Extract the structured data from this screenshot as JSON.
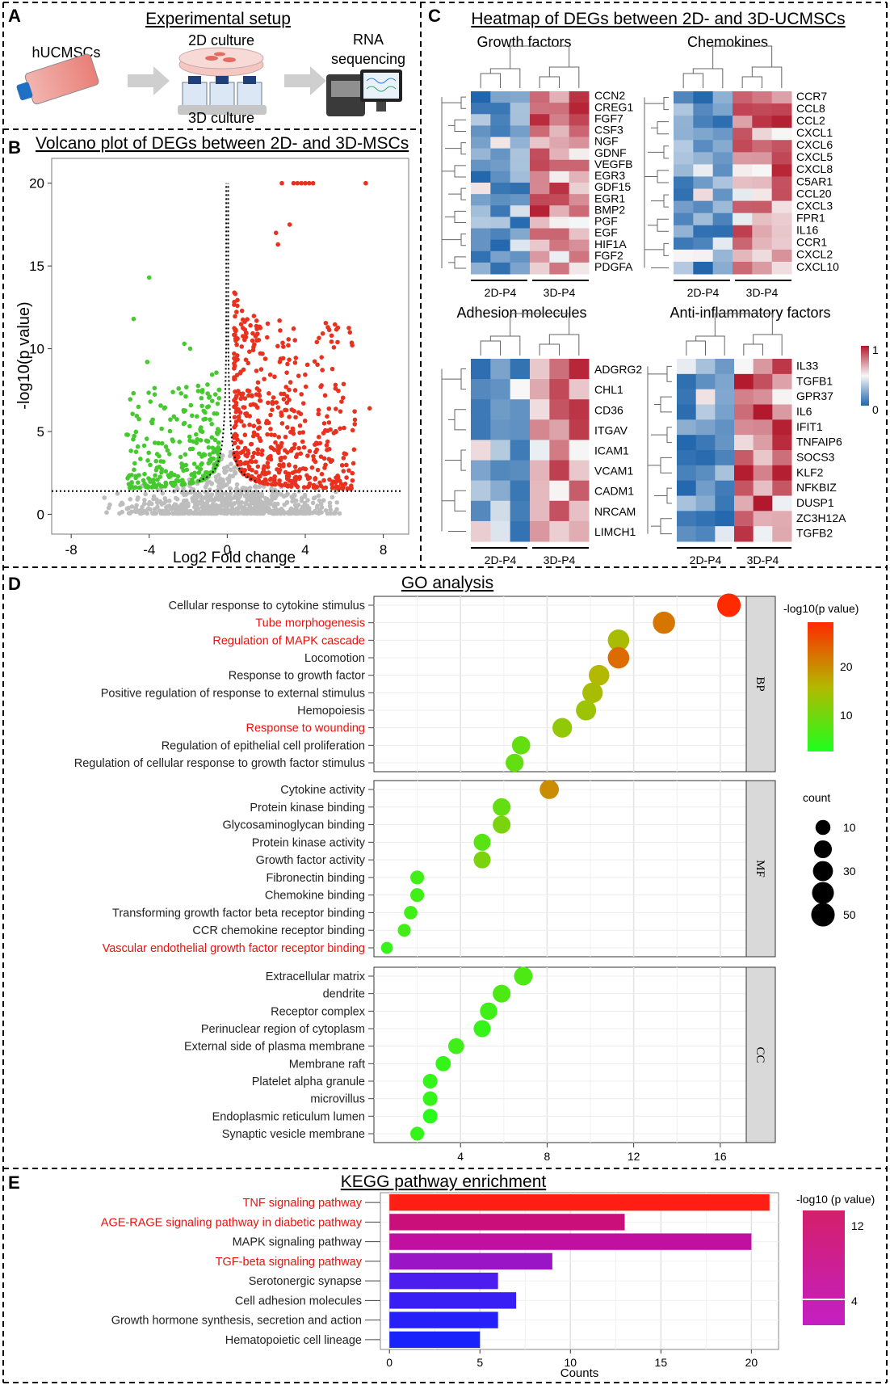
{
  "panel_letters": {
    "A": "A",
    "B": "B",
    "C": "C",
    "D": "D",
    "E": "E"
  },
  "panelA": {
    "title": "Experimental setup",
    "label_cells": "hUCMSCs",
    "label_2d": "2D culture",
    "label_3d": "3D culture",
    "label_rna": [
      "RNA",
      "sequencing"
    ]
  },
  "panelB": {
    "title": "Volcano plot of DEGs between 2D- and 3D-MSCs",
    "ylabel": "-log10(p value)",
    "xlabel": "Log2 Fold change",
    "x_ticks": [
      -8,
      -4,
      0,
      4,
      8
    ],
    "y_ticks": [
      0,
      5,
      10,
      15,
      20
    ],
    "colors": {
      "up": "#e8321f",
      "down": "#45c92f",
      "ns": "#bdbdbd"
    }
  },
  "panelC": {
    "title": "Heatmap of DEGs between 2D- and 3D-UCMSCs",
    "group_labels": [
      "2D-P4",
      "3D-P4"
    ],
    "legend_ticks": [
      "1",
      "0"
    ],
    "heatmaps": [
      {
        "title": "Growth factors",
        "genes": [
          "CCN2",
          "CREG1",
          "FGF7",
          "CSF3",
          "NGF",
          "GDNF",
          "VEGFB",
          "EGR3",
          "GDF15",
          "EGR1",
          "BMP2",
          "PGF",
          "EGF",
          "HIF1A",
          "FGF2",
          "PDGFA"
        ]
      },
      {
        "title": "Chemokines",
        "genes": [
          "CCR7",
          "CCL8",
          "CCL2",
          "CXCL1",
          "CXCL6",
          "CXCL5",
          "CXCL8",
          "C5AR1",
          "CCL20",
          "CXCL3",
          "FPR1",
          "IL16",
          "CCR1",
          "CXCL2",
          "CXCL10"
        ]
      },
      {
        "title": "Adhesion molecules",
        "genes": [
          "ADGRG2",
          "CHL1",
          "CD36",
          "ITGAV",
          "ICAM1",
          "VCAM1",
          "CADM1",
          "NRCAM",
          "LIMCH1"
        ]
      },
      {
        "title": "Anti-inflammatory factors",
        "genes": [
          "IL33",
          "TGFB1",
          "GPR37",
          "IL6",
          "IFIT1",
          "TNFAIP6",
          "SOCS3",
          "KLF2",
          "NFKBIZ",
          "DUSP1",
          "ZC3H12A",
          "TGFB2"
        ]
      }
    ]
  },
  "chart_data": [
    {
      "type": "scatter",
      "title": "GO analysis",
      "x_ticks": [
        4,
        8,
        12,
        16
      ],
      "xlim": [
        0,
        17.2
      ],
      "color_legend_title": "-log10(p value)",
      "color_legend_ticks": [
        20,
        10
      ],
      "size_legend_title": "count",
      "size_legend_values": [
        10,
        20,
        30,
        40,
        50
      ],
      "highlight_color": "#e8130c",
      "facets": [
        {
          "name": "BP",
          "terms": [
            {
              "label": "Cellular response to cytokine stimulus",
              "x": 16.4,
              "logp": 29,
              "count": 50,
              "highlight": false
            },
            {
              "label": "Tube morphogenesis",
              "x": 13.4,
              "logp": 22,
              "count": 42,
              "highlight": true
            },
            {
              "label": "Regulation of MAPK cascade",
              "x": 11.3,
              "logp": 15,
              "count": 38,
              "highlight": true
            },
            {
              "label": "Locomotion",
              "x": 11.3,
              "logp": 23,
              "count": 38,
              "highlight": false
            },
            {
              "label": "Response to growth factor",
              "x": 10.4,
              "logp": 16,
              "count": 33,
              "highlight": false
            },
            {
              "label": "Positive regulation of response to external stimulus",
              "x": 10.1,
              "logp": 15,
              "count": 32,
              "highlight": false
            },
            {
              "label": "Hemopoiesis",
              "x": 9.8,
              "logp": 14,
              "count": 31,
              "highlight": false
            },
            {
              "label": "Response to wounding",
              "x": 8.7,
              "logp": 13,
              "count": 28,
              "highlight": true
            },
            {
              "label": "Regulation of epithelial cell proliferation",
              "x": 6.8,
              "logp": 9,
              "count": 22,
              "highlight": false
            },
            {
              "label": "Regulation of cellular response to growth factor stimulus",
              "x": 6.5,
              "logp": 9,
              "count": 21,
              "highlight": false
            }
          ]
        },
        {
          "name": "MF",
          "terms": [
            {
              "label": "Cytokine activity",
              "x": 8.1,
              "logp": 20,
              "count": 26,
              "highlight": false
            },
            {
              "label": "Protein kinase binding",
              "x": 5.9,
              "logp": 9,
              "count": 20,
              "highlight": false
            },
            {
              "label": "Glycosaminoglycan binding",
              "x": 5.9,
              "logp": 11,
              "count": 20,
              "highlight": false
            },
            {
              "label": "Protein kinase activity",
              "x": 5.0,
              "logp": 8,
              "count": 17,
              "highlight": false
            },
            {
              "label": "Growth factor activity",
              "x": 5.0,
              "logp": 11,
              "count": 17,
              "highlight": false
            },
            {
              "label": "Fibronectin binding",
              "x": 2.0,
              "logp": 6,
              "count": 7,
              "highlight": false
            },
            {
              "label": "Chemokine binding",
              "x": 2.0,
              "logp": 6,
              "count": 7,
              "highlight": false
            },
            {
              "label": "Transforming growth factor beta receptor binding",
              "x": 1.7,
              "logp": 6,
              "count": 6,
              "highlight": false
            },
            {
              "label": "CCR chemokine receptor binding",
              "x": 1.4,
              "logp": 6,
              "count": 5,
              "highlight": false
            },
            {
              "label": "Vascular endothelial growth factor receptor binding",
              "x": 0.6,
              "logp": 5,
              "count": 3,
              "highlight": true
            }
          ]
        },
        {
          "name": "CC",
          "terms": [
            {
              "label": "Extracellular matrix",
              "x": 6.9,
              "logp": 7,
              "count": 23,
              "highlight": false
            },
            {
              "label": "dendrite",
              "x": 5.9,
              "logp": 7,
              "count": 20,
              "highlight": false
            },
            {
              "label": "Receptor complex",
              "x": 5.3,
              "logp": 6,
              "count": 18,
              "highlight": false
            },
            {
              "label": "Perinuclear region of cytoplasm",
              "x": 5.0,
              "logp": 5,
              "count": 17,
              "highlight": false
            },
            {
              "label": "External side of plasma membrane",
              "x": 3.8,
              "logp": 6,
              "count": 13,
              "highlight": false
            },
            {
              "label": "Membrane raft",
              "x": 3.2,
              "logp": 5,
              "count": 11,
              "highlight": false
            },
            {
              "label": "Platelet alpha granule",
              "x": 2.6,
              "logp": 5,
              "count": 9,
              "highlight": false
            },
            {
              "label": "microvillus",
              "x": 2.6,
              "logp": 5,
              "count": 9,
              "highlight": false
            },
            {
              "label": "Endoplasmic reticulum lumen",
              "x": 2.6,
              "logp": 4,
              "count": 9,
              "highlight": false
            },
            {
              "label": "Synaptic vesicle membrane",
              "x": 2.0,
              "logp": 5,
              "count": 7,
              "highlight": false
            }
          ]
        }
      ]
    },
    {
      "type": "bar",
      "title": "KEGG pathway enrichment",
      "xlabel": "Counts",
      "x_ticks": [
        0,
        5,
        10,
        15,
        20
      ],
      "xlim": [
        -0.5,
        21.5
      ],
      "color_legend_title": "-log10 (p value)",
      "color_legend_ticks": [
        12,
        4
      ],
      "bars": [
        {
          "label": "TNF signaling pathway",
          "value": 21,
          "color": "#ff1d14",
          "highlight": true
        },
        {
          "label": "AGE-RAGE signaling pathway in diabetic pathway",
          "value": 13,
          "color": "#cb0f7a",
          "highlight": true
        },
        {
          "label": "MAPK signaling pathway",
          "value": 20,
          "color": "#c10fa0",
          "highlight": false
        },
        {
          "label": "TGF-beta signaling pathway",
          "value": 9,
          "color": "#9a15c6",
          "highlight": true
        },
        {
          "label": "Serotonergic synapse",
          "value": 6,
          "color": "#4d1df0",
          "highlight": false
        },
        {
          "label": "Cell adhesion molecules",
          "value": 7,
          "color": "#3a1ff4",
          "highlight": false
        },
        {
          "label": "Growth hormone synthesis, secretion and action",
          "value": 6,
          "color": "#2521f8",
          "highlight": false
        },
        {
          "label": "Hematopoietic cell lineage",
          "value": 5,
          "color": "#1a22fb",
          "highlight": false
        }
      ]
    }
  ]
}
